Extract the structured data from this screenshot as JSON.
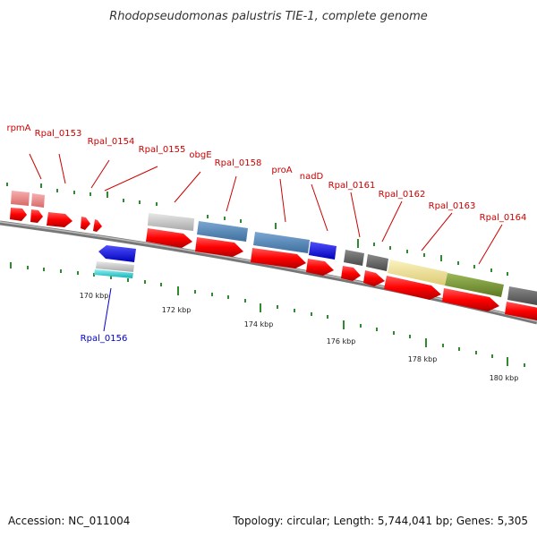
{
  "title": "Rhodopseudomonas palustris TIE-1, complete genome",
  "footer": {
    "accession": "Accession: NC_011004",
    "summary": "Topology: circular; Length: 5,744,041 bp; Genes: 5,305"
  },
  "colors": {
    "label_forward": "#cc0000",
    "label_reverse": "#0000cc",
    "tick": "#2e8b2e",
    "backbone": "#888888"
  },
  "genes": [
    {
      "id": "rpmA",
      "label": "rpmA",
      "color": "#cc0000"
    },
    {
      "id": "rpal-0153",
      "label": "Rpal_0153",
      "color": "#cc0000"
    },
    {
      "id": "rpal-0154",
      "label": "Rpal_0154",
      "color": "#cc0000"
    },
    {
      "id": "rpal-0155",
      "label": "Rpal_0155",
      "color": "#cc0000"
    },
    {
      "id": "obge",
      "label": "obgE",
      "color": "#cc0000"
    },
    {
      "id": "rpal-0158",
      "label": "Rpal_0158",
      "color": "#cc0000"
    },
    {
      "id": "proa",
      "label": "proA",
      "color": "#cc0000"
    },
    {
      "id": "nadd",
      "label": "nadD",
      "color": "#cc0000"
    },
    {
      "id": "rpal-0161",
      "label": "Rpal_0161",
      "color": "#cc0000"
    },
    {
      "id": "rpal-0162",
      "label": "Rpal_0162",
      "color": "#cc0000"
    },
    {
      "id": "rpal-0163",
      "label": "Rpal_0163",
      "color": "#cc0000"
    },
    {
      "id": "rpal-0164",
      "label": "Rpal_0164",
      "color": "#cc0000"
    },
    {
      "id": "rpal-0156",
      "label": "Rpal_0156",
      "color": "#0000cc"
    }
  ],
  "scale": {
    "unit": "kbp",
    "labels": [
      "170 kbp",
      "172 kbp",
      "174 kbp",
      "176 kbp",
      "178 kbp",
      "180 kbp"
    ]
  }
}
